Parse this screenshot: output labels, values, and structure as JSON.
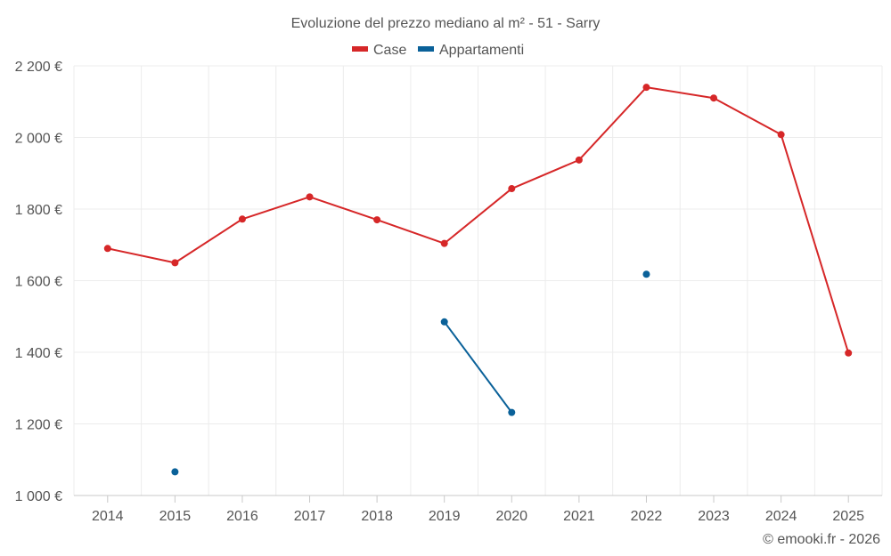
{
  "chart_data": {
    "type": "line",
    "title": "Evoluzione del prezzo mediano al m² - 51 - Sarry",
    "categories": [
      "2014",
      "2015",
      "2016",
      "2017",
      "2018",
      "2019",
      "2020",
      "2021",
      "2022",
      "2023",
      "2024",
      "2025"
    ],
    "ylim": [
      1000,
      2200
    ],
    "yticks": [
      1000,
      1200,
      1400,
      1600,
      1800,
      2000,
      2200
    ],
    "ytick_labels": [
      "1 000 €",
      "1 200 €",
      "1 400 €",
      "1 600 €",
      "1 800 €",
      "2 000 €",
      "2 200 €"
    ],
    "legend_position": "top-center",
    "grid": true,
    "series": [
      {
        "name": "Case",
        "color": "#d62728",
        "values": [
          1690,
          1650,
          1772,
          1834,
          1770,
          1704,
          1857,
          1937,
          2140,
          2110,
          2008,
          1398
        ]
      },
      {
        "name": "Appartamenti",
        "color": "#0a6199",
        "values": [
          null,
          1066,
          null,
          null,
          null,
          1485,
          1232,
          null,
          1618,
          null,
          null,
          null
        ]
      }
    ]
  },
  "credit": "© emooki.fr - 2026"
}
